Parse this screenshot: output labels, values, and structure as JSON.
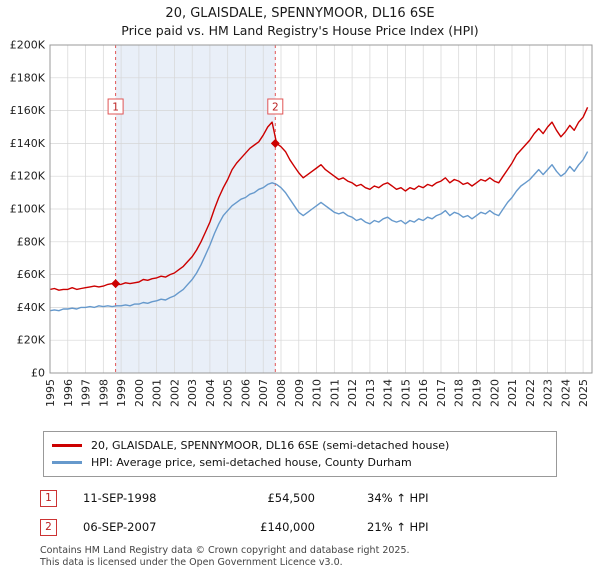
{
  "header": {
    "title": "20, GLAISDALE, SPENNYMOOR, DL16 6SE",
    "subtitle": "Price paid vs. HM Land Registry's House Price Index (HPI)"
  },
  "legend": {
    "items": [
      {
        "label": "20, GLAISDALE, SPENNYMOOR, DL16 6SE (semi-detached house)",
        "color": "#cc0000"
      },
      {
        "label": "HPI: Average price, semi-detached house, County Durham",
        "color": "#6699cc"
      }
    ]
  },
  "transactions": [
    {
      "num": "1",
      "date": "11-SEP-1998",
      "price": "£54,500",
      "hpi": "34% ↑ HPI"
    },
    {
      "num": "2",
      "date": "06-SEP-2007",
      "price": "£140,000",
      "hpi": "21% ↑ HPI"
    }
  ],
  "footer": {
    "line1": "Contains HM Land Registry data © Crown copyright and database right 2025.",
    "line2": "This data is licensed under the Open Government Licence v3.0."
  },
  "chart_data": {
    "type": "line",
    "title": "20, GLAISDALE, SPENNYMOOR, DL16 6SE — Price paid vs. HPI",
    "y_unit": "GBP thousands",
    "x_range": [
      1995,
      2025.5
    ],
    "y_range": [
      0,
      200
    ],
    "x_start": 1995,
    "x_step": 0.25,
    "grid": true,
    "x_ticks": [
      1995,
      1996,
      1997,
      1998,
      1999,
      2000,
      2001,
      2002,
      2003,
      2004,
      2005,
      2006,
      2007,
      2008,
      2009,
      2010,
      2011,
      2012,
      2013,
      2014,
      2015,
      2016,
      2017,
      2018,
      2019,
      2020,
      2021,
      2022,
      2023,
      2024,
      2025
    ],
    "y_ticks": [
      {
        "label": "£0",
        "value": 0
      },
      {
        "label": "£20K",
        "value": 20
      },
      {
        "label": "£40K",
        "value": 40
      },
      {
        "label": "£60K",
        "value": 60
      },
      {
        "label": "£80K",
        "value": 80
      },
      {
        "label": "£100K",
        "value": 100
      },
      {
        "label": "£120K",
        "value": 120
      },
      {
        "label": "£140K",
        "value": 140
      },
      {
        "label": "£160K",
        "value": 160
      },
      {
        "label": "£180K",
        "value": 180
      },
      {
        "label": "£200K",
        "value": 200
      }
    ],
    "shaded_band": [
      1998.69,
      2007.68
    ],
    "colors": {
      "property": "#cc0000",
      "hpi": "#6699cc",
      "band": "#e9eff8",
      "grid": "#d6d6d6",
      "marker_line": "#e05555",
      "border": "#999999"
    },
    "series": [
      {
        "name": "20, GLAISDALE, SPENNYMOOR, DL16 6SE (semi-detached house)",
        "color": "#cc0000",
        "values": [
          51,
          51.5,
          50.5,
          51,
          51,
          52,
          51,
          51.5,
          52,
          52.5,
          53,
          52.5,
          53,
          54,
          54.5,
          54,
          54,
          55,
          54.5,
          55,
          55.5,
          57,
          56.5,
          57.5,
          58,
          59,
          58.5,
          60,
          61,
          63,
          65,
          68,
          71,
          75,
          80,
          86,
          92,
          100,
          107,
          113,
          118,
          124,
          128,
          131,
          134,
          137,
          139,
          141,
          145,
          150,
          153,
          140,
          138,
          135,
          130,
          126,
          122,
          119,
          121,
          123,
          125,
          127,
          124,
          122,
          120,
          118,
          119,
          117,
          116,
          114,
          115,
          113,
          112,
          114,
          113,
          115,
          116,
          114,
          112,
          113,
          111,
          113,
          112,
          114,
          113,
          115,
          114,
          116,
          117,
          119,
          116,
          118,
          117,
          115,
          116,
          114,
          116,
          118,
          117,
          119,
          117,
          116,
          120,
          124,
          128,
          133,
          136,
          139,
          142,
          146,
          149,
          146,
          150,
          153,
          148,
          144,
          147,
          151,
          148,
          153,
          156,
          162
        ]
      },
      {
        "name": "HPI: Average price, semi-detached house, County Durham",
        "color": "#6699cc",
        "values": [
          38,
          38.5,
          38,
          39,
          39,
          39.5,
          39,
          40,
          40,
          40.5,
          40,
          41,
          40.5,
          41,
          40.5,
          41,
          41,
          41.5,
          41,
          42,
          42,
          43,
          42.5,
          43.5,
          44,
          45,
          44.5,
          46,
          47,
          49,
          51,
          54,
          57,
          61,
          66,
          72,
          78,
          85,
          91,
          96,
          99,
          102,
          104,
          106,
          107,
          109,
          110,
          112,
          113,
          115,
          116,
          115,
          113,
          110,
          106,
          102,
          98,
          96,
          98,
          100,
          102,
          104,
          102,
          100,
          98,
          97,
          98,
          96,
          95,
          93,
          94,
          92,
          91,
          93,
          92,
          94,
          95,
          93,
          92,
          93,
          91,
          93,
          92,
          94,
          93,
          95,
          94,
          96,
          97,
          99,
          96,
          98,
          97,
          95,
          96,
          94,
          96,
          98,
          97,
          99,
          97,
          96,
          100,
          104,
          107,
          111,
          114,
          116,
          118,
          121,
          124,
          121,
          124,
          127,
          123,
          120,
          122,
          126,
          123,
          127,
          130,
          135
        ]
      }
    ],
    "markers": [
      {
        "num": "1",
        "x": 1998.69,
        "y": 54.5,
        "date": "11-SEP-1998",
        "price_gbp": 54500,
        "vs_hpi": "34% above HPI"
      },
      {
        "num": "2",
        "x": 2007.68,
        "y": 140,
        "date": "06-SEP-2007",
        "price_gbp": 140000,
        "vs_hpi": "21% above HPI"
      }
    ]
  }
}
